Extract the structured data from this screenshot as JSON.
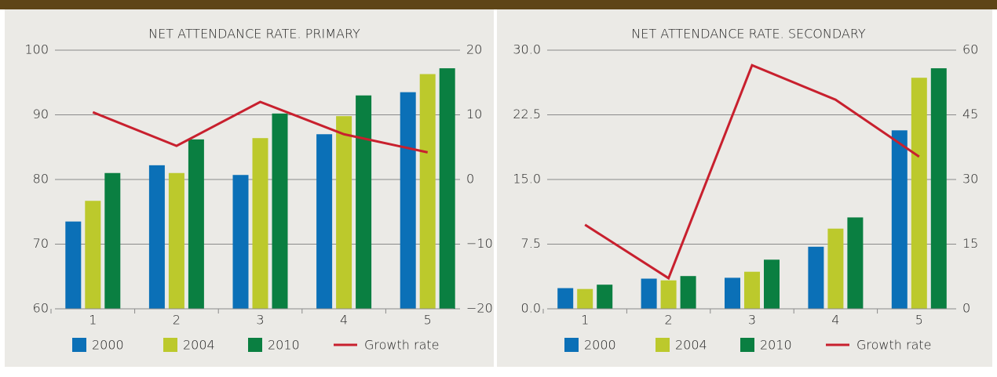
{
  "chart_data": [
    {
      "type": "combo",
      "title": "NET ATTENDANCE RATE. PRIMARY",
      "categories": [
        "1",
        "2",
        "3",
        "4",
        "5"
      ],
      "series": [
        {
          "name": "2000",
          "type": "bar",
          "color": "#0b70b7",
          "values": [
            73.5,
            82.2,
            80.7,
            87,
            93.5
          ]
        },
        {
          "name": "2004",
          "type": "bar",
          "color": "#bcc92c",
          "values": [
            76.7,
            81,
            86.4,
            89.8,
            96.3
          ]
        },
        {
          "name": "2010",
          "type": "bar",
          "color": "#0a7f41",
          "values": [
            81,
            86.2,
            90.2,
            93,
            97.2
          ]
        },
        {
          "name": "Growth rate",
          "type": "line",
          "axis": "y2",
          "color": "#c8202e",
          "values": [
            10.4,
            5.2,
            12,
            7,
            4.2
          ]
        }
      ],
      "ylim": [
        60,
        100
      ],
      "yticks": [
        60,
        70,
        80,
        90,
        100
      ],
      "y2lim": [
        -20,
        20
      ],
      "y2ticks": [
        {
          "value": -20,
          "label": "−20"
        },
        {
          "value": -10,
          "label": "−10"
        },
        0,
        10,
        20
      ],
      "grid": true
    },
    {
      "type": "combo",
      "title": "NET ATTENDANCE RATE. SECONDARY",
      "categories": [
        "1",
        "2",
        "3",
        "4",
        "5"
      ],
      "series": [
        {
          "name": "2000",
          "type": "bar",
          "color": "#0b70b7",
          "values": [
            2.4,
            3.5,
            3.6,
            7.2,
            20.7
          ]
        },
        {
          "name": "2004",
          "type": "bar",
          "color": "#bcc92c",
          "values": [
            2.3,
            3.3,
            4.3,
            9.3,
            26.8
          ]
        },
        {
          "name": "2010",
          "type": "bar",
          "color": "#0a7f41",
          "values": [
            2.8,
            3.8,
            5.7,
            10.6,
            27.9
          ]
        },
        {
          "name": "Growth rate",
          "type": "line",
          "axis": "y2",
          "color": "#c8202e",
          "values": [
            19.5,
            7.1,
            56.5,
            48.5,
            35.3
          ]
        }
      ],
      "ylim": [
        0,
        30
      ],
      "yticks": [
        {
          "value": 0,
          "label": "0.0"
        },
        7.5,
        {
          "value": 15,
          "label": "15.0"
        },
        22.5,
        {
          "value": 30,
          "label": "30.0"
        }
      ],
      "y2lim": [
        0,
        60
      ],
      "y2ticks": [
        0,
        15,
        30,
        45,
        60
      ],
      "grid": true
    }
  ]
}
